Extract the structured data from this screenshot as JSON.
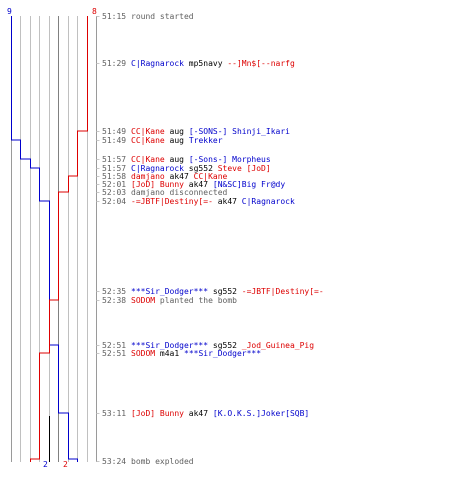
{
  "colors": {
    "blue_team": "#0000cc",
    "red_team": "#dd0000",
    "system": "#606060",
    "gridline": "#c0c0c0"
  },
  "counts": {
    "blue_start": "9",
    "red_start": "8",
    "blue_end": "2",
    "red_end": "2"
  },
  "chart_data": {
    "type": "line",
    "series": [
      {
        "color": "#0000cc",
        "values": [
          9,
          9,
          9,
          8,
          7,
          6,
          6,
          6,
          6,
          5,
          5,
          5,
          4,
          4,
          3,
          2,
          2,
          2
        ]
      },
      {
        "color": "#dd0000",
        "values": [
          8,
          8,
          7,
          7,
          7,
          7,
          6,
          6,
          5,
          5,
          5,
          4,
          4,
          3,
          3,
          3,
          2,
          2
        ]
      }
    ]
  },
  "events": [
    {
      "time": "51:15",
      "parts": [
        {
          "text": "round started",
          "color": "#606060"
        }
      ]
    },
    {
      "time": "51:29",
      "parts": [
        {
          "text": "C|Ragnarock",
          "color": "#0000cc"
        },
        {
          "text": " mp5navy ",
          "color": "#000000"
        },
        {
          "text": "--]Mn$[--narfg",
          "color": "#dd0000"
        }
      ]
    },
    {
      "time": "51:49",
      "parts": [
        {
          "text": "CC|Kane",
          "color": "#dd0000"
        },
        {
          "text": " aug ",
          "color": "#000000"
        },
        {
          "text": "[-SONS-] Shinji_Ikari",
          "color": "#0000cc"
        }
      ]
    },
    {
      "time": "51:49",
      "parts": [
        {
          "text": "CC|Kane",
          "color": "#dd0000"
        },
        {
          "text": " aug ",
          "color": "#000000"
        },
        {
          "text": "Trekker",
          "color": "#0000cc"
        }
      ]
    },
    {
      "time": "51:57",
      "parts": [
        {
          "text": "CC|Kane",
          "color": "#dd0000"
        },
        {
          "text": " aug ",
          "color": "#000000"
        },
        {
          "text": "[-Sons-] Morpheus",
          "color": "#0000cc"
        }
      ]
    },
    {
      "time": "51:57",
      "parts": [
        {
          "text": "C|Ragnarock",
          "color": "#0000cc"
        },
        {
          "text": " sg552 ",
          "color": "#000000"
        },
        {
          "text": "Steve [JoD]",
          "color": "#dd0000"
        }
      ]
    },
    {
      "time": "51:58",
      "parts": [
        {
          "text": "damjano",
          "color": "#dd0000"
        },
        {
          "text": " ak47 ",
          "color": "#000000"
        },
        {
          "text": "CC|Kane",
          "color": "#dd0000"
        }
      ]
    },
    {
      "time": "52:01",
      "parts": [
        {
          "text": "[JoD] Bunny",
          "color": "#dd0000"
        },
        {
          "text": " ak47 ",
          "color": "#000000"
        },
        {
          "text": "[N&SC]Big Fr@dy",
          "color": "#0000cc"
        }
      ]
    },
    {
      "time": "52:03",
      "parts": [
        {
          "text": "damjano disconnected",
          "color": "#606060"
        }
      ]
    },
    {
      "time": "52:04",
      "parts": [
        {
          "text": "-=JBTF|Destiny[=-",
          "color": "#dd0000"
        },
        {
          "text": " ak47 ",
          "color": "#000000"
        },
        {
          "text": "C|Ragnarock",
          "color": "#0000cc"
        }
      ]
    },
    {
      "time": "52:35",
      "parts": [
        {
          "text": "***Sir_Dodger***",
          "color": "#0000cc"
        },
        {
          "text": " sg552 ",
          "color": "#000000"
        },
        {
          "text": "-=JBTF|Destiny[=-",
          "color": "#dd0000"
        }
      ]
    },
    {
      "time": "52:38",
      "parts": [
        {
          "text": "SODOM",
          "color": "#dd0000"
        },
        {
          "text": " planted the bomb",
          "color": "#606060"
        }
      ]
    },
    {
      "time": "52:51",
      "parts": [
        {
          "text": "***Sir_Dodger***",
          "color": "#0000cc"
        },
        {
          "text": " sg552 ",
          "color": "#000000"
        },
        {
          "text": "_Jod_Guinea_Pig",
          "color": "#dd0000"
        }
      ]
    },
    {
      "time": "52:51",
      "parts": [
        {
          "text": "SODOM",
          "color": "#dd0000"
        },
        {
          "text": " m4a1 ",
          "color": "#000000"
        },
        {
          "text": "***Sir_Dodger***",
          "color": "#0000cc"
        }
      ]
    },
    {
      "time": "53:11",
      "parts": [
        {
          "text": "[JoD] Bunny",
          "color": "#dd0000"
        },
        {
          "text": " ak47 ",
          "color": "#000000"
        },
        {
          "text": "[K.O.K.S.]Joker[SQB]",
          "color": "#0000cc"
        }
      ]
    },
    {
      "time": "53:24",
      "parts": [
        {
          "text": "bomb exploded",
          "color": "#606060"
        }
      ]
    }
  ]
}
